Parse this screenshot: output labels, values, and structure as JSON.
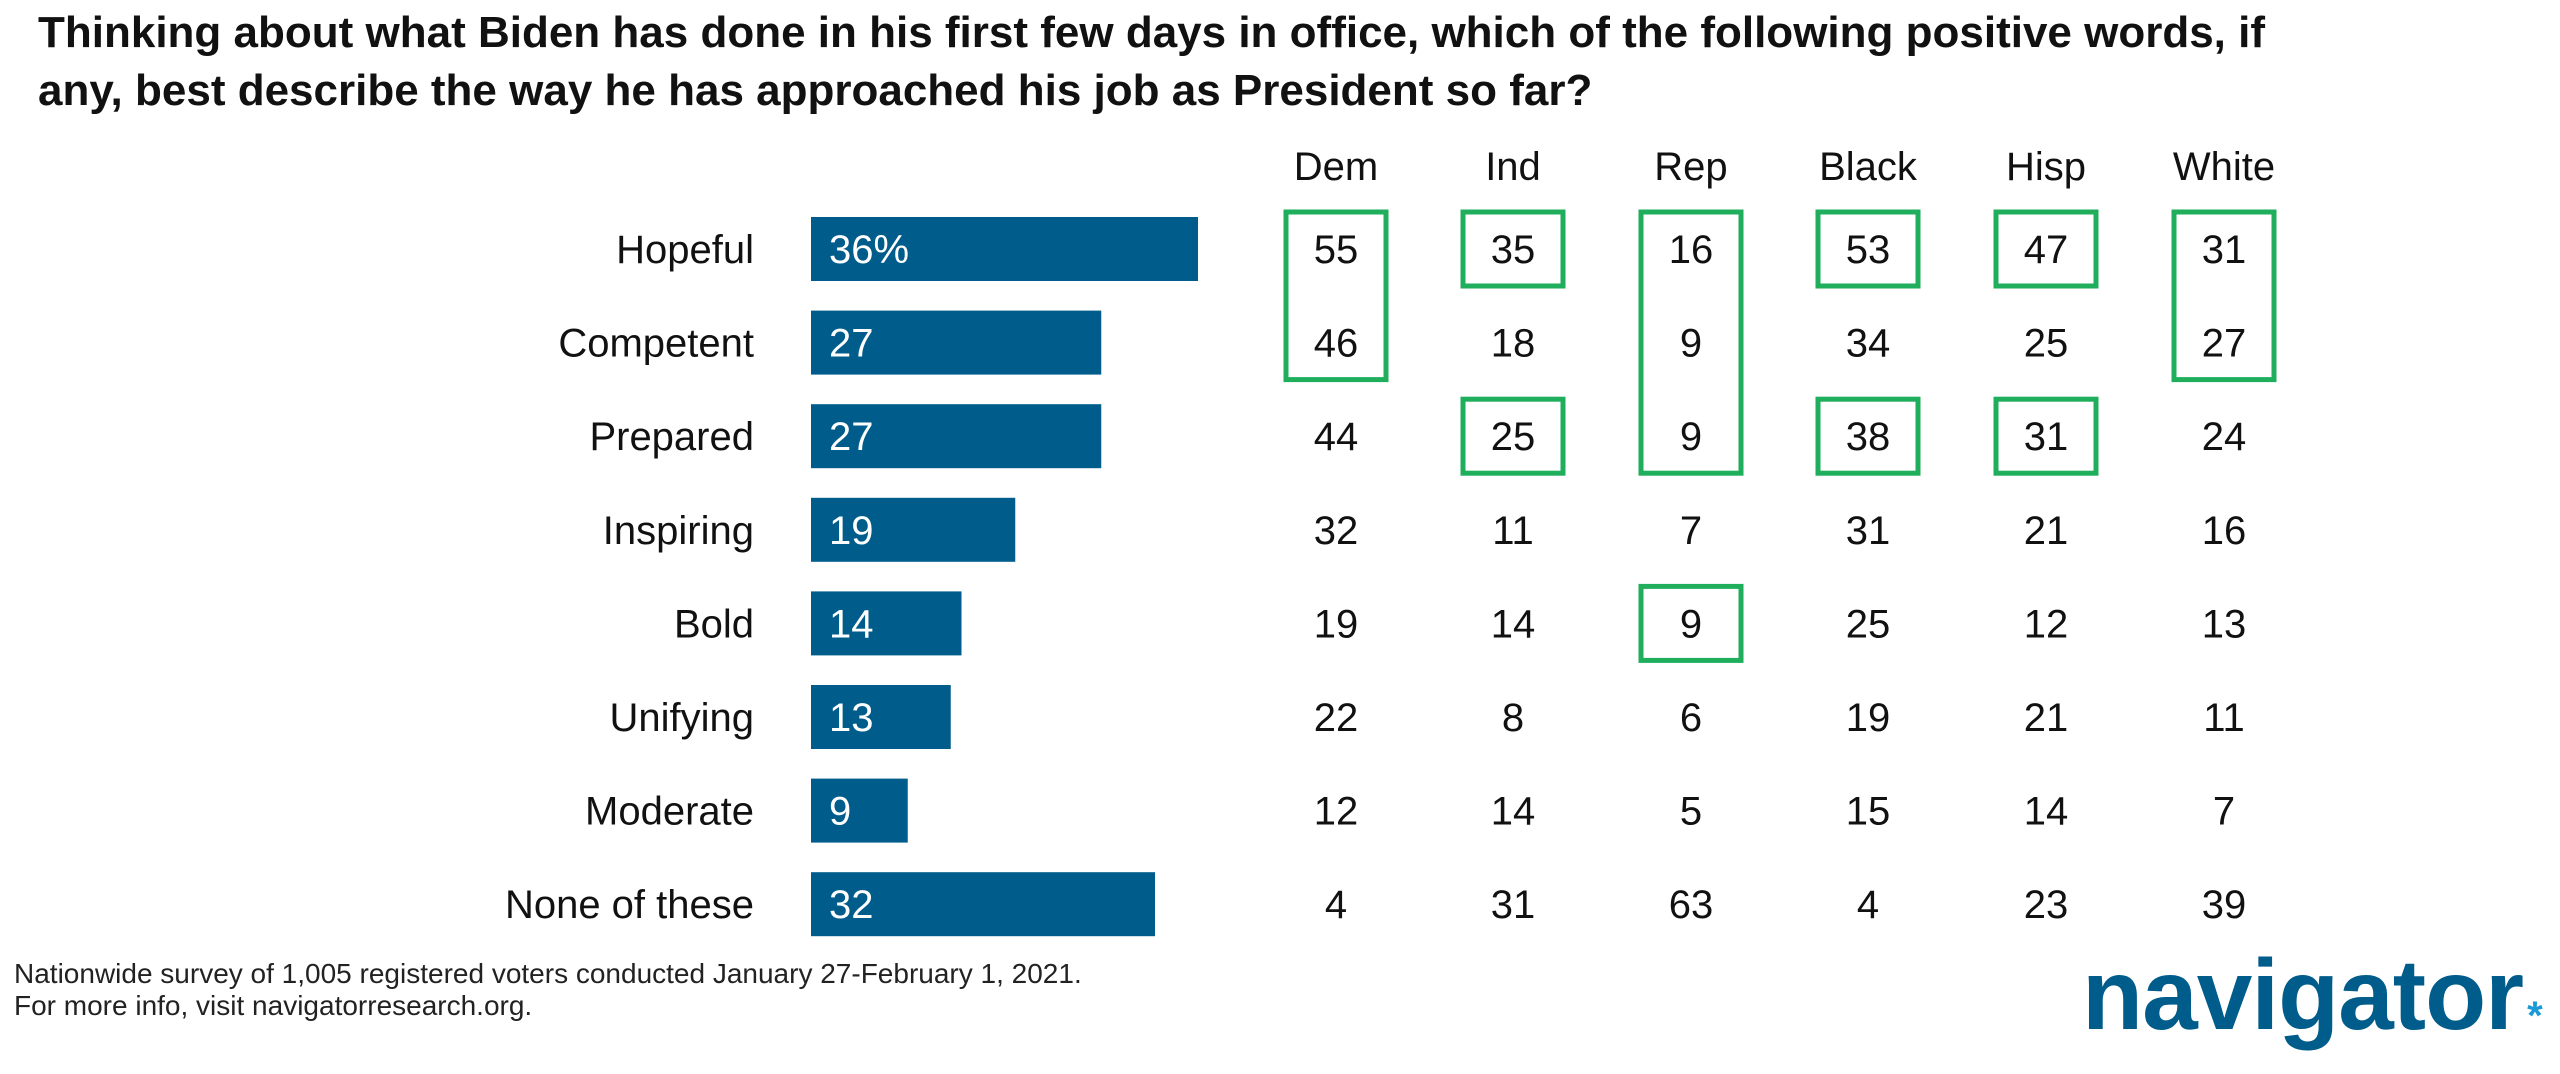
{
  "title_lines": [
    "Thinking about what Biden has done in his first few days in office, which of the following positive words, if",
    "any, best describe the way he has approached his job as President so far?"
  ],
  "chart_data": {
    "type": "bar",
    "orientation": "horizontal",
    "categories": [
      "Hopeful",
      "Competent",
      "Prepared",
      "Inspiring",
      "Bold",
      "Unifying",
      "Moderate",
      "None of these"
    ],
    "values": [
      36,
      27,
      27,
      19,
      14,
      13,
      9,
      32
    ],
    "value_labels": [
      "36%",
      "27",
      "27",
      "19",
      "14",
      "13",
      "9",
      "32"
    ],
    "bar_color": "#005c8a",
    "highlight_color": "#1fae5b",
    "table": {
      "columns": [
        "Dem",
        "Ind",
        "Rep",
        "Black",
        "Hisp",
        "White"
      ],
      "rows": [
        [
          55,
          35,
          16,
          53,
          47,
          31
        ],
        [
          46,
          18,
          9,
          34,
          25,
          27
        ],
        [
          44,
          25,
          9,
          38,
          31,
          24
        ],
        [
          32,
          11,
          7,
          31,
          21,
          16
        ],
        [
          19,
          14,
          9,
          25,
          12,
          13
        ],
        [
          22,
          8,
          6,
          19,
          21,
          11
        ],
        [
          12,
          14,
          5,
          15,
          14,
          7
        ],
        [
          4,
          31,
          63,
          4,
          23,
          39
        ]
      ],
      "highlights": [
        {
          "column": "Dem",
          "rows": [
            "Hopeful",
            "Competent"
          ]
        },
        {
          "column": "Ind",
          "rows": [
            "Hopeful"
          ]
        },
        {
          "column": "Ind",
          "rows": [
            "Prepared"
          ]
        },
        {
          "column": "Rep",
          "rows": [
            "Hopeful",
            "Competent",
            "Prepared"
          ]
        },
        {
          "column": "Rep",
          "rows": [
            "Bold"
          ]
        },
        {
          "column": "Black",
          "rows": [
            "Hopeful"
          ]
        },
        {
          "column": "Black",
          "rows": [
            "Prepared"
          ]
        },
        {
          "column": "Hisp",
          "rows": [
            "Hopeful"
          ]
        },
        {
          "column": "Hisp",
          "rows": [
            "Prepared"
          ]
        },
        {
          "column": "White",
          "rows": [
            "Hopeful",
            "Competent"
          ]
        }
      ]
    }
  },
  "footnote": {
    "line1": "Nationwide survey of 1,005 registered voters conducted January 27-February 1, 2021.",
    "line2": "For more info, visit navigatorresearch.org."
  },
  "logo": {
    "text": "navigator",
    "mark": "*",
    "color": "#005c8a",
    "mark_color": "#1a9ad6"
  }
}
